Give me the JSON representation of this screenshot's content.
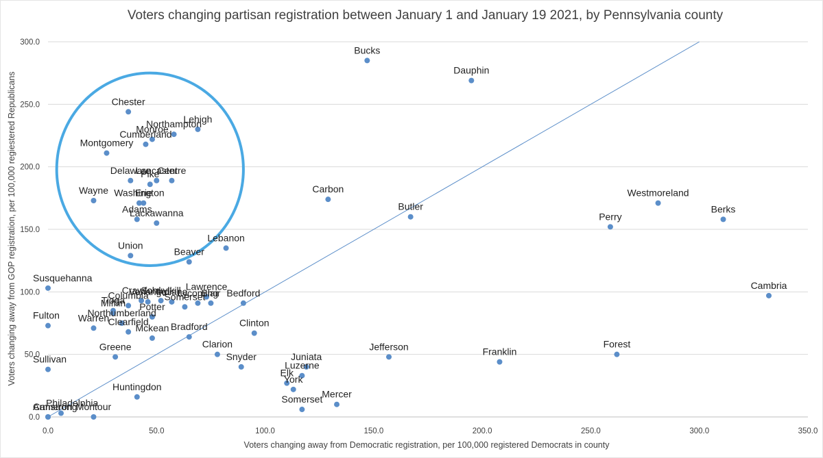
{
  "chart_data": {
    "type": "scatter",
    "title": "Voters changing partisan registration between January 1 and January 19 2021, by Pennsylvania county",
    "xlabel": "Voters changing away from Democratic registration, per 100,000 registered Democrats in county",
    "ylabel": "Voters changing away from GOP registration, per 100,000 regiestered Republicans",
    "xlim": [
      0,
      350
    ],
    "ylim": [
      0,
      300
    ],
    "x_ticks": [
      "0.0",
      "50.0",
      "100.0",
      "150.0",
      "200.0",
      "250.0",
      "300.0",
      "350.0"
    ],
    "y_ticks": [
      "0.0",
      "50.0",
      "100.0",
      "150.0",
      "200.0",
      "250.0",
      "300.0"
    ],
    "grid": "horizontal",
    "reference_line": {
      "from": [
        0,
        0
      ],
      "to": [
        300,
        300
      ]
    },
    "highlight_ellipse": {
      "cx": 47,
      "cy": 198,
      "rx": 43,
      "ry": 77
    },
    "marker_color": "#5b8ec9",
    "line_color": "#5b8ec9",
    "ellipse_color": "#4aa9e3",
    "points": [
      {
        "label": "Bucks",
        "x": 147,
        "y": 285
      },
      {
        "label": "Dauphin",
        "x": 195,
        "y": 269
      },
      {
        "label": "Chester",
        "x": 37,
        "y": 244
      },
      {
        "label": "Lehigh",
        "x": 69,
        "y": 230
      },
      {
        "label": "Northampton",
        "x": 58,
        "y": 226
      },
      {
        "label": "Monroe",
        "x": 48,
        "y": 222
      },
      {
        "label": "Cumberland",
        "x": 45,
        "y": 218
      },
      {
        "label": "Montgomery",
        "x": 27,
        "y": 211
      },
      {
        "label": "Delaware",
        "x": 38,
        "y": 189
      },
      {
        "label": "Lancaster",
        "x": 50,
        "y": 189
      },
      {
        "label": "Centre",
        "x": 57,
        "y": 189
      },
      {
        "label": "Pike",
        "x": 47,
        "y": 186
      },
      {
        "label": "Washington",
        "x": 42,
        "y": 171
      },
      {
        "label": "Wayne",
        "x": 21,
        "y": 173
      },
      {
        "label": "Erie",
        "x": 44,
        "y": 171
      },
      {
        "label": "Lackawanna",
        "x": 50,
        "y": 155
      },
      {
        "label": "Adams",
        "x": 41,
        "y": 158
      },
      {
        "label": "Union",
        "x": 38,
        "y": 129
      },
      {
        "label": "Lebanon",
        "x": 82,
        "y": 135
      },
      {
        "label": "Beaver",
        "x": 65,
        "y": 124
      },
      {
        "label": "Carbon",
        "x": 129,
        "y": 174
      },
      {
        "label": "Butler",
        "x": 167,
        "y": 160
      },
      {
        "label": "Westmoreland",
        "x": 281,
        "y": 171
      },
      {
        "label": "Perry",
        "x": 259,
        "y": 152
      },
      {
        "label": "Berks",
        "x": 311,
        "y": 158
      },
      {
        "label": "Cambria",
        "x": 332,
        "y": 97
      },
      {
        "label": "Susquehanna",
        "x": 0,
        "y": 103
      },
      {
        "label": "Crawford",
        "x": 43,
        "y": 93
      },
      {
        "label": "Venango",
        "x": 46,
        "y": 92
      },
      {
        "label": "Schuylkill",
        "x": 52,
        "y": 93
      },
      {
        "label": "Indiana",
        "x": 57,
        "y": 92
      },
      {
        "label": "Somerset",
        "x": 63,
        "y": 88
      },
      {
        "label": "Lawrence",
        "x": 73,
        "y": 96
      },
      {
        "label": "Blair",
        "x": 75,
        "y": 91
      },
      {
        "label": "Bedford",
        "x": 90,
        "y": 91
      },
      {
        "label": "Columbia",
        "x": 37,
        "y": 89
      },
      {
        "label": "Lycoming",
        "x": 69,
        "y": 91
      },
      {
        "label": "Mifflin",
        "x": 30,
        "y": 83
      },
      {
        "label": "Potter",
        "x": 48,
        "y": 80
      },
      {
        "label": "Tioga",
        "x": 30,
        "y": 85
      },
      {
        "label": "Fulton",
        "x": 0,
        "y": 73
      },
      {
        "label": "Warren",
        "x": 21,
        "y": 71
      },
      {
        "label": "Northumberland",
        "x": 34,
        "y": 75
      },
      {
        "label": "Clearfield",
        "x": 37,
        "y": 68
      },
      {
        "label": "Mckean",
        "x": 48,
        "y": 63
      },
      {
        "label": "Clinton",
        "x": 95,
        "y": 67
      },
      {
        "label": "Bradford",
        "x": 65,
        "y": 64
      },
      {
        "label": "Greene",
        "x": 31,
        "y": 48
      },
      {
        "label": "Sullivan",
        "x": 0,
        "y": 38
      },
      {
        "label": "Clarion",
        "x": 78,
        "y": 50
      },
      {
        "label": "Snyder",
        "x": 89,
        "y": 40
      },
      {
        "label": "Juniata",
        "x": 119,
        "y": 40
      },
      {
        "label": "Luzerne",
        "x": 117,
        "y": 33
      },
      {
        "label": "Elk",
        "x": 110,
        "y": 27
      },
      {
        "label": "York",
        "x": 113,
        "y": 22
      },
      {
        "label": "Jefferson",
        "x": 157,
        "y": 48
      },
      {
        "label": "Franklin",
        "x": 208,
        "y": 44
      },
      {
        "label": "Forest",
        "x": 262,
        "y": 50
      },
      {
        "label": "Somerset",
        "x": 117,
        "y": 6
      },
      {
        "label": "Mercer",
        "x": 133,
        "y": 10
      },
      {
        "label": "Huntingdon",
        "x": 41,
        "y": 16
      },
      {
        "label": "Philadelphia",
        "x": 6,
        "y": 3
      },
      {
        "label": "Armstrong",
        "x": 0,
        "y": 0
      },
      {
        "label": "Cameron",
        "x": 0,
        "y": 0
      },
      {
        "label": "Montour",
        "x": 21,
        "y": 0
      }
    ]
  }
}
